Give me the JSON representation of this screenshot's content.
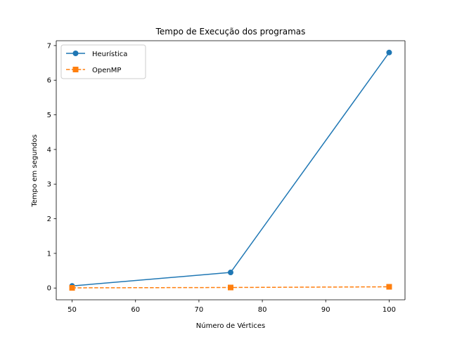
{
  "chart_data": {
    "type": "line",
    "title": "Tempo de Execução dos programas",
    "xlabel": "Número de Vértices",
    "ylabel": "Tempo em segundos",
    "xlim": [
      47.5,
      102.5
    ],
    "ylim": [
      -0.34,
      7.14
    ],
    "xticks": [
      50,
      60,
      70,
      80,
      90,
      100
    ],
    "yticks": [
      0,
      1,
      2,
      3,
      4,
      5,
      6,
      7
    ],
    "grid": false,
    "legend_position": "top-left",
    "series": [
      {
        "name": "Heurística",
        "x": [
          50,
          75,
          100
        ],
        "values": [
          0.06,
          0.45,
          6.8
        ],
        "color": "#1f77b4",
        "line_style": "solid",
        "marker": "circle"
      },
      {
        "name": "OpenMP",
        "x": [
          50,
          75,
          100
        ],
        "values": [
          0.005,
          0.015,
          0.035
        ],
        "color": "#ff7f0e",
        "line_style": "dashed",
        "marker": "square"
      }
    ]
  }
}
